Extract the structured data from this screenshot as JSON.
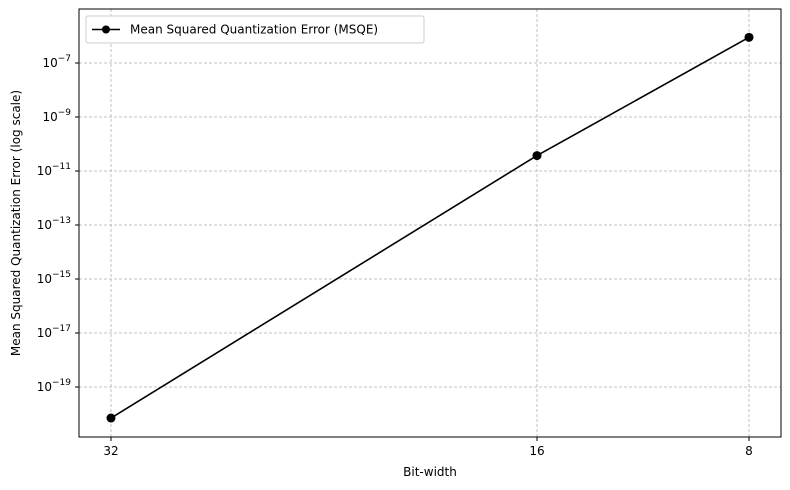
{
  "chart_data": {
    "type": "line",
    "title": "",
    "xlabel": "Bit-width",
    "ylabel": "Mean Squared Quantization Error (log scale)",
    "x_tick_labels": [
      "32",
      "16",
      "8"
    ],
    "y_scale": "log",
    "y_tick_exponents": [
      -19,
      -17,
      -15,
      -13,
      -11,
      -9,
      -7
    ],
    "y_tick_base": "10",
    "grid": true,
    "legend_position": "top-left",
    "series": [
      {
        "name": "Mean Squared Quantization Error (MSQE)",
        "color": "#000000",
        "marker": "circle",
        "points": [
          {
            "x_label": "32",
            "y_exp": -20.15
          },
          {
            "x_label": "16",
            "y_exp": -10.43
          },
          {
            "x_label": "8",
            "y_exp": -6.05
          }
        ]
      }
    ]
  }
}
